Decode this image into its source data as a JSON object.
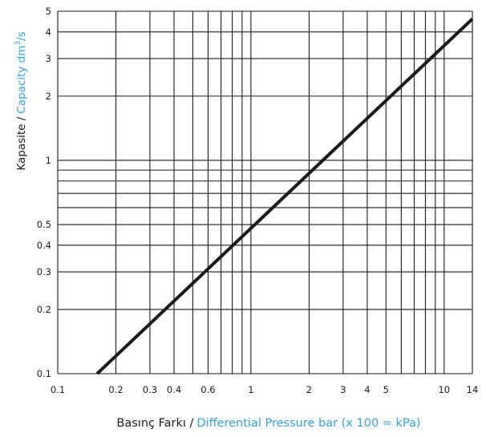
{
  "chart_data": {
    "type": "line",
    "x_scale": "log",
    "y_scale": "log",
    "xlim": [
      0.1,
      14
    ],
    "ylim": [
      0.1,
      5
    ],
    "x_ticks": [
      {
        "value": 0.1,
        "label": "0.1"
      },
      {
        "value": 0.2,
        "label": "0.2"
      },
      {
        "value": 0.3,
        "label": "0.3"
      },
      {
        "value": 0.4,
        "label": "0.4"
      },
      {
        "value": 0.6,
        "label": "0.6"
      },
      {
        "value": 1,
        "label": "1"
      },
      {
        "value": 2,
        "label": "2"
      },
      {
        "value": 3,
        "label": "3"
      },
      {
        "value": 4,
        "label": "4"
      },
      {
        "value": 5,
        "label": "5"
      },
      {
        "value": 10,
        "label": "10"
      },
      {
        "value": 14,
        "label": "14"
      }
    ],
    "y_ticks": [
      {
        "value": 0.1,
        "label": "0.1"
      },
      {
        "value": 0.2,
        "label": "0.2"
      },
      {
        "value": 0.3,
        "label": "0.3"
      },
      {
        "value": 0.4,
        "label": "0.4"
      },
      {
        "value": 0.5,
        "label": "0.5"
      },
      {
        "value": 1,
        "label": "1"
      },
      {
        "value": 2,
        "label": "2"
      },
      {
        "value": 3,
        "label": "3"
      },
      {
        "value": 4,
        "label": "4"
      },
      {
        "value": 5,
        "label": "5"
      }
    ],
    "x_gridlines": [
      0.1,
      0.2,
      0.3,
      0.4,
      0.5,
      0.6,
      0.7,
      0.8,
      0.9,
      1,
      2,
      3,
      4,
      5,
      6,
      7,
      8,
      9,
      10,
      14
    ],
    "y_gridlines": [
      0.1,
      0.2,
      0.3,
      0.4,
      0.5,
      0.6,
      0.7,
      0.8,
      0.9,
      1,
      2,
      3,
      4,
      5
    ],
    "grid": true,
    "series": [
      {
        "points": [
          {
            "x": 0.16,
            "y": 0.1
          },
          {
            "x": 14,
            "y": 4.6
          }
        ]
      }
    ],
    "xlabel": {
      "primary": "Basınç Farkı /",
      "secondary": "Differential Pressure  bar (x 100 = kPa)"
    },
    "ylabel": {
      "primary": "Kapasite /",
      "secondary": "Capacity dm",
      "superscript": "3",
      "suffix": "/s"
    },
    "colors": {
      "primary_text": "#1a1a1a",
      "accent_text": "#2fa3e0",
      "line": "#1a1a1a",
      "grid": "#1a1a1a"
    }
  }
}
